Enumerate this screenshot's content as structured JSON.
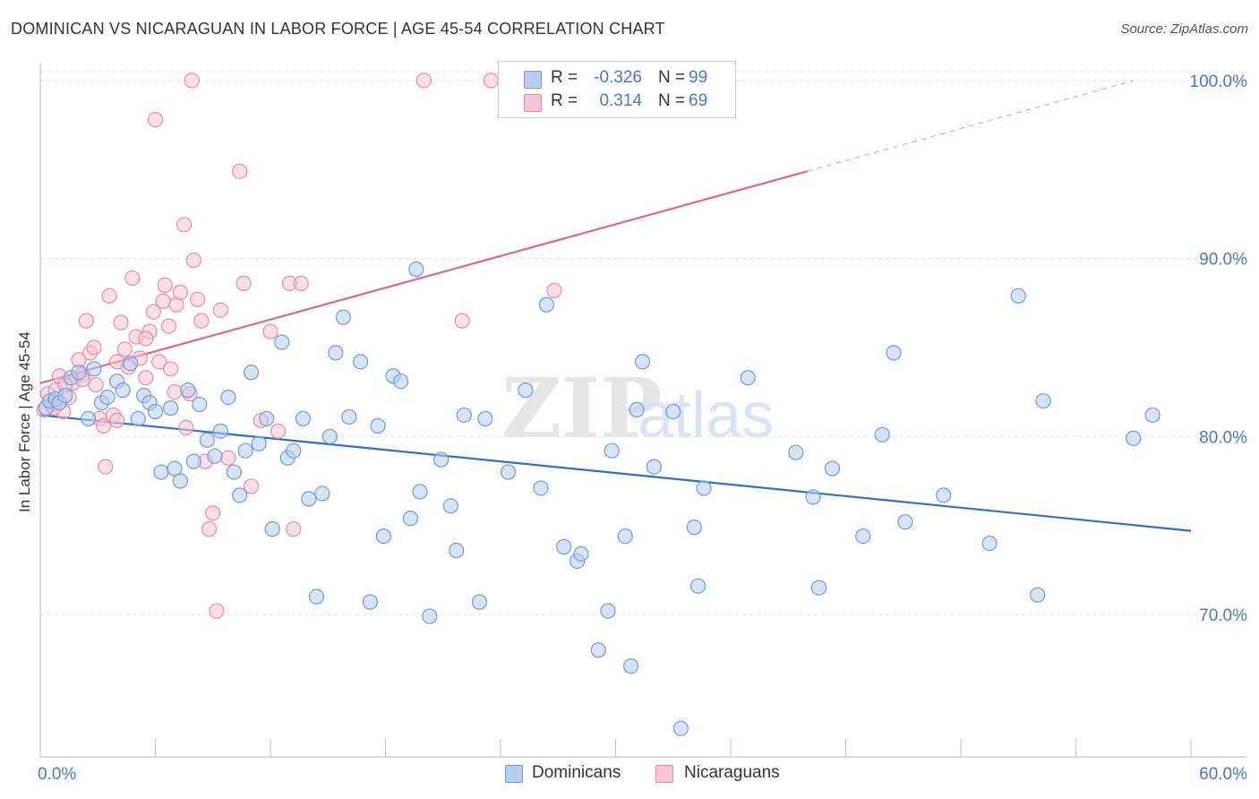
{
  "header": {
    "title": "DOMINICAN VS NICARAGUAN IN LABOR FORCE | AGE 45-54 CORRELATION CHART",
    "source": "Source: ZipAtlas.com"
  },
  "legend_top": [
    {
      "r_label": "R =",
      "r_value": "-0.326",
      "n_label": "N =",
      "n_value": "99"
    },
    {
      "r_label": "R =",
      "r_value": "0.314",
      "n_label": "N =",
      "n_value": "69"
    }
  ],
  "legend_bottom": [
    "Dominicans",
    "Nicaraguans"
  ],
  "watermark": {
    "zip": "ZIP",
    "atlas": "atlas"
  },
  "colors": {
    "dominicans_fill": "#b7cdf1",
    "dominicans_stroke": "#6f9ad8",
    "dominicans_line": "#2f6fcc",
    "nicaraguans_fill": "#f7c5d3",
    "nicaraguans_stroke": "#e88aa6",
    "nicaraguans_line": "#e0658c",
    "tick_text": "#4a78c4",
    "grid": "#e0e0e0"
  },
  "chart_data": {
    "type": "scatter",
    "title": "DOMINICAN VS NICARAGUAN IN LABOR FORCE | AGE 45-54 CORRELATION CHART",
    "xlabel": "",
    "ylabel": "In Labor Force | Age 45-54",
    "xlim": [
      0,
      60
    ],
    "ylim": [
      62,
      101
    ],
    "x_tick_labels": [
      "0.0%",
      "60.0%"
    ],
    "y_ticks": [
      70,
      80,
      90,
      100
    ],
    "y_tick_labels": [
      "70.0%",
      "80.0%",
      "90.0%",
      "100.0%"
    ],
    "grid": true,
    "legend": "top-center",
    "series": [
      {
        "name": "Dominicans",
        "r": -0.326,
        "n": 99,
        "trend": {
          "x0": 0,
          "y0": 81.2,
          "x1": 60,
          "y1": 74.7
        },
        "points": [
          [
            0.3,
            81.6
          ],
          [
            0.5,
            82.0
          ],
          [
            0.8,
            82.1
          ],
          [
            1.0,
            81.9
          ],
          [
            1.3,
            82.3
          ],
          [
            1.6,
            83.3
          ],
          [
            2.0,
            83.6
          ],
          [
            2.5,
            81.0
          ],
          [
            2.8,
            83.8
          ],
          [
            3.2,
            81.9
          ],
          [
            3.5,
            82.2
          ],
          [
            4.0,
            83.1
          ],
          [
            4.3,
            82.6
          ],
          [
            4.7,
            84.1
          ],
          [
            5.1,
            81.0
          ],
          [
            5.4,
            82.3
          ],
          [
            5.7,
            81.9
          ],
          [
            6.0,
            81.4
          ],
          [
            6.3,
            78.0
          ],
          [
            6.8,
            81.6
          ],
          [
            7.0,
            78.2
          ],
          [
            7.3,
            77.5
          ],
          [
            7.7,
            82.6
          ],
          [
            8.0,
            78.6
          ],
          [
            8.3,
            81.8
          ],
          [
            8.7,
            79.8
          ],
          [
            9.1,
            78.9
          ],
          [
            9.4,
            80.3
          ],
          [
            9.8,
            82.2
          ],
          [
            10.1,
            78.0
          ],
          [
            10.4,
            76.7
          ],
          [
            10.7,
            79.2
          ],
          [
            11.0,
            83.6
          ],
          [
            11.4,
            79.6
          ],
          [
            11.8,
            81.0
          ],
          [
            12.1,
            74.8
          ],
          [
            12.6,
            85.3
          ],
          [
            12.9,
            78.8
          ],
          [
            13.2,
            79.2
          ],
          [
            13.7,
            81.0
          ],
          [
            14.0,
            76.5
          ],
          [
            14.4,
            71.0
          ],
          [
            14.7,
            76.8
          ],
          [
            15.1,
            80.0
          ],
          [
            15.4,
            84.7
          ],
          [
            15.8,
            86.7
          ],
          [
            16.1,
            81.1
          ],
          [
            16.7,
            84.2
          ],
          [
            17.2,
            70.7
          ],
          [
            17.6,
            80.6
          ],
          [
            17.9,
            74.4
          ],
          [
            18.4,
            83.4
          ],
          [
            18.8,
            83.1
          ],
          [
            19.3,
            75.4
          ],
          [
            19.8,
            76.9
          ],
          [
            19.6,
            89.4
          ],
          [
            20.3,
            69.9
          ],
          [
            20.9,
            78.7
          ],
          [
            21.4,
            76.1
          ],
          [
            21.7,
            73.6
          ],
          [
            22.1,
            81.2
          ],
          [
            22.9,
            70.7
          ],
          [
            23.2,
            81.0
          ],
          [
            24.4,
            78.0
          ],
          [
            25.3,
            82.6
          ],
          [
            26.1,
            77.1
          ],
          [
            26.4,
            87.4
          ],
          [
            27.3,
            73.8
          ],
          [
            28.0,
            73.0
          ],
          [
            28.2,
            73.4
          ],
          [
            29.1,
            68.0
          ],
          [
            29.6,
            70.2
          ],
          [
            29.8,
            79.2
          ],
          [
            30.5,
            74.4
          ],
          [
            30.8,
            67.1
          ],
          [
            31.1,
            81.5
          ],
          [
            31.4,
            84.2
          ],
          [
            32.0,
            78.3
          ],
          [
            33.0,
            81.4
          ],
          [
            33.4,
            63.6
          ],
          [
            34.1,
            74.9
          ],
          [
            34.3,
            71.6
          ],
          [
            34.6,
            77.1
          ],
          [
            36.9,
            83.3
          ],
          [
            39.4,
            79.1
          ],
          [
            40.3,
            76.6
          ],
          [
            40.6,
            71.5
          ],
          [
            41.3,
            78.2
          ],
          [
            42.9,
            74.4
          ],
          [
            43.9,
            80.1
          ],
          [
            44.5,
            84.7
          ],
          [
            45.1,
            75.2
          ],
          [
            47.1,
            76.7
          ],
          [
            49.5,
            74.0
          ],
          [
            51.0,
            87.9
          ],
          [
            52.0,
            71.1
          ],
          [
            52.3,
            82.0
          ],
          [
            57.0,
            79.9
          ],
          [
            58.0,
            81.2
          ]
        ]
      },
      {
        "name": "Nicaraguans",
        "r": 0.314,
        "n": 69,
        "trend": {
          "x0": 0,
          "y0": 83.0,
          "x1": 40,
          "y1": 94.9
        },
        "trend_extension": {
          "x0": 40,
          "y0": 94.9,
          "x1": 57.0,
          "y1": 100.0
        },
        "points": [
          [
            0.2,
            81.5
          ],
          [
            0.4,
            82.4
          ],
          [
            0.6,
            81.8
          ],
          [
            0.8,
            82.6
          ],
          [
            1.0,
            83.4
          ],
          [
            1.2,
            81.4
          ],
          [
            1.5,
            82.2
          ],
          [
            1.7,
            83.0
          ],
          [
            2.0,
            84.3
          ],
          [
            2.2,
            83.5
          ],
          [
            2.4,
            86.5
          ],
          [
            2.6,
            84.7
          ],
          [
            2.8,
            85.0
          ],
          [
            3.1,
            81.0
          ],
          [
            3.3,
            80.6
          ],
          [
            3.4,
            78.3
          ],
          [
            3.6,
            87.9
          ],
          [
            3.8,
            81.2
          ],
          [
            4.0,
            84.2
          ],
          [
            4.2,
            86.4
          ],
          [
            4.4,
            84.9
          ],
          [
            4.6,
            83.9
          ],
          [
            4.8,
            88.9
          ],
          [
            5.0,
            85.6
          ],
          [
            5.2,
            84.4
          ],
          [
            5.5,
            83.3
          ],
          [
            5.7,
            85.9
          ],
          [
            5.9,
            87.0
          ],
          [
            6.0,
            97.8
          ],
          [
            6.2,
            84.2
          ],
          [
            6.4,
            87.6
          ],
          [
            6.5,
            88.5
          ],
          [
            6.7,
            86.2
          ],
          [
            6.8,
            83.8
          ],
          [
            7.0,
            82.5
          ],
          [
            7.1,
            87.4
          ],
          [
            7.3,
            88.1
          ],
          [
            7.5,
            91.9
          ],
          [
            7.6,
            80.5
          ],
          [
            7.8,
            82.4
          ],
          [
            8.0,
            89.9
          ],
          [
            8.2,
            87.7
          ],
          [
            8.4,
            86.5
          ],
          [
            8.6,
            78.6
          ],
          [
            8.8,
            74.8
          ],
          [
            9.0,
            75.7
          ],
          [
            9.2,
            70.2
          ],
          [
            9.4,
            87.1
          ],
          [
            9.8,
            78.8
          ],
          [
            10.4,
            94.9
          ],
          [
            10.6,
            88.6
          ],
          [
            11.0,
            77.2
          ],
          [
            11.5,
            80.9
          ],
          [
            12.0,
            85.9
          ],
          [
            12.4,
            80.3
          ],
          [
            13.0,
            88.6
          ],
          [
            13.2,
            74.8
          ],
          [
            13.6,
            88.6
          ],
          [
            20.0,
            100.0
          ],
          [
            22.0,
            86.5
          ],
          [
            23.5,
            100.0
          ],
          [
            26.8,
            88.2
          ],
          [
            7.9,
            100.0
          ],
          [
            5.5,
            85.5
          ],
          [
            4.0,
            80.9
          ],
          [
            2.2,
            83.2
          ],
          [
            1.3,
            82.9
          ],
          [
            0.7,
            81.6
          ],
          [
            2.9,
            82.9
          ]
        ]
      }
    ]
  }
}
